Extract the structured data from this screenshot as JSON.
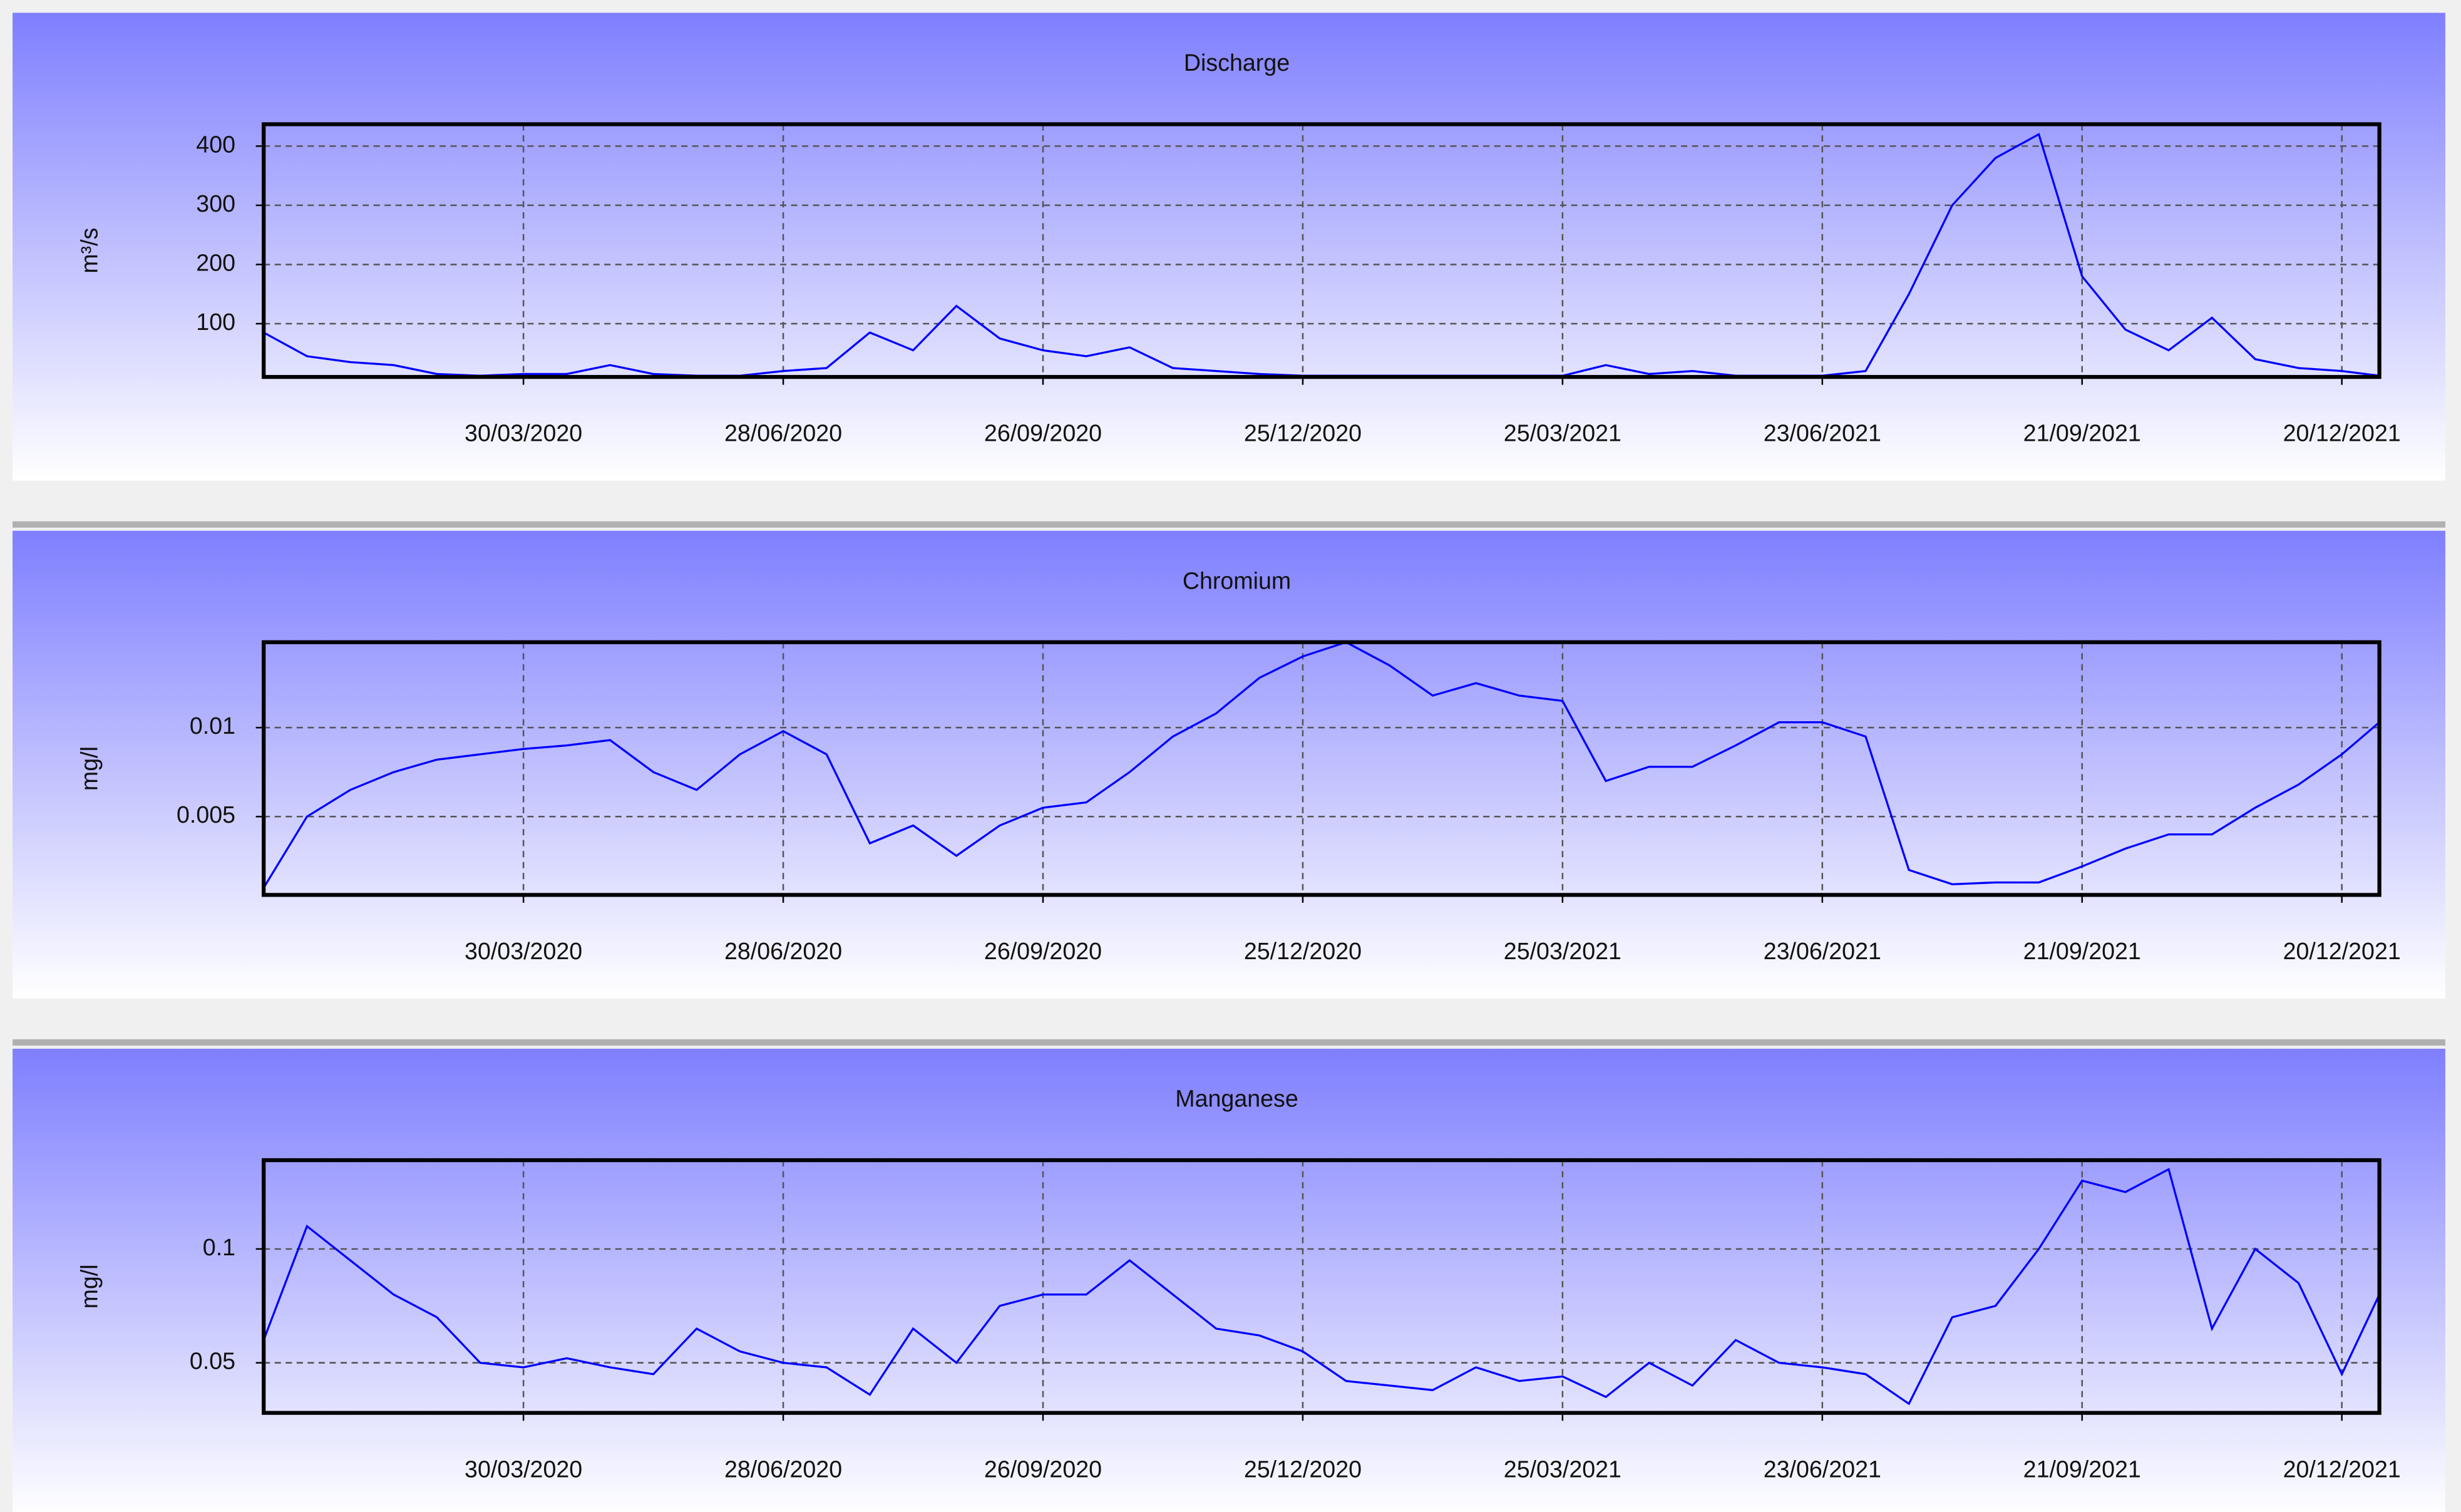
{
  "chart_data": [
    {
      "type": "line",
      "title": "Discharge",
      "ylabel": "m³/s",
      "color": "#0000ff",
      "grid": true,
      "xlim": [
        "31/12/2019",
        "02/01/2022"
      ],
      "ylim": [
        10,
        437
      ],
      "xticks": [
        "30/03/2020",
        "28/06/2020",
        "26/09/2020",
        "25/12/2020",
        "25/03/2021",
        "23/06/2021",
        "21/09/2021",
        "20/12/2021"
      ],
      "yticks": [
        100,
        200,
        300,
        400
      ],
      "x": [
        "31/12/2019",
        "15/01/2020",
        "30/01/2020",
        "14/02/2020",
        "29/02/2020",
        "15/03/2020",
        "30/03/2020",
        "14/04/2020",
        "29/04/2020",
        "14/05/2020",
        "29/05/2020",
        "13/06/2020",
        "28/06/2020",
        "13/07/2020",
        "28/07/2020",
        "12/08/2020",
        "27/08/2020",
        "11/09/2020",
        "26/09/2020",
        "11/10/2020",
        "26/10/2020",
        "10/11/2020",
        "25/11/2020",
        "10/12/2020",
        "25/12/2020",
        "09/01/2021",
        "24/01/2021",
        "08/02/2021",
        "23/02/2021",
        "10/03/2021",
        "25/03/2021",
        "09/04/2021",
        "24/04/2021",
        "09/05/2021",
        "24/05/2021",
        "08/06/2021",
        "23/06/2021",
        "08/07/2021",
        "23/07/2021",
        "07/08/2021",
        "22/08/2021",
        "06/09/2021",
        "21/09/2021",
        "06/10/2021",
        "21/10/2021",
        "05/11/2021",
        "20/11/2021",
        "05/12/2021",
        "20/12/2021",
        "02/01/2022"
      ],
      "values": [
        85,
        45,
        35,
        30,
        15,
        12,
        15,
        15,
        30,
        15,
        12,
        12,
        20,
        25,
        85,
        55,
        130,
        75,
        55,
        45,
        60,
        25,
        20,
        15,
        12,
        12,
        12,
        12,
        12,
        12,
        12,
        30,
        15,
        20,
        12,
        12,
        12,
        20,
        150,
        300,
        380,
        420,
        180,
        90,
        55,
        110,
        40,
        25,
        20,
        12
      ]
    },
    {
      "type": "line",
      "title": "Chromium",
      "ylabel": "mg/l",
      "color": "#0000ff",
      "grid": true,
      "xlim": [
        "31/12/2019",
        "02/01/2022"
      ],
      "ylim": [
        0.0006,
        0.0148
      ],
      "xticks": [
        "30/03/2020",
        "28/06/2020",
        "26/09/2020",
        "25/12/2020",
        "25/03/2021",
        "23/06/2021",
        "21/09/2021",
        "20/12/2021"
      ],
      "yticks": [
        0.005,
        0.01
      ],
      "x": [
        "31/12/2019",
        "15/01/2020",
        "30/01/2020",
        "14/02/2020",
        "29/02/2020",
        "15/03/2020",
        "30/03/2020",
        "14/04/2020",
        "29/04/2020",
        "14/05/2020",
        "29/05/2020",
        "13/06/2020",
        "28/06/2020",
        "13/07/2020",
        "28/07/2020",
        "12/08/2020",
        "27/08/2020",
        "11/09/2020",
        "26/09/2020",
        "11/10/2020",
        "26/10/2020",
        "10/11/2020",
        "25/11/2020",
        "10/12/2020",
        "25/12/2020",
        "09/01/2021",
        "24/01/2021",
        "08/02/2021",
        "23/02/2021",
        "10/03/2021",
        "25/03/2021",
        "09/04/2021",
        "24/04/2021",
        "09/05/2021",
        "24/05/2021",
        "08/06/2021",
        "23/06/2021",
        "08/07/2021",
        "23/07/2021",
        "07/08/2021",
        "22/08/2021",
        "06/09/2021",
        "21/09/2021",
        "06/10/2021",
        "21/10/2021",
        "05/11/2021",
        "20/11/2021",
        "05/12/2021",
        "20/12/2021",
        "02/01/2022"
      ],
      "values": [
        0.001,
        0.005,
        0.0065,
        0.0075,
        0.0082,
        0.0085,
        0.0088,
        0.009,
        0.0093,
        0.0075,
        0.0065,
        0.0085,
        0.0098,
        0.0085,
        0.0035,
        0.0045,
        0.0028,
        0.0045,
        0.0055,
        0.0058,
        0.0075,
        0.0095,
        0.0108,
        0.0128,
        0.014,
        0.0148,
        0.0135,
        0.0118,
        0.0125,
        0.0118,
        0.0115,
        0.007,
        0.0078,
        0.0078,
        0.009,
        0.0103,
        0.0103,
        0.0095,
        0.002,
        0.0012,
        0.0013,
        0.0013,
        0.0022,
        0.0032,
        0.004,
        0.004,
        0.0055,
        0.0068,
        0.0085,
        0.0103
      ]
    },
    {
      "type": "line",
      "title": "Manganese",
      "ylabel": "mg/l",
      "color": "#0000ff",
      "grid": true,
      "xlim": [
        "31/12/2019",
        "02/01/2022"
      ],
      "ylim": [
        0.028,
        0.139
      ],
      "xticks": [
        "30/03/2020",
        "28/06/2020",
        "26/09/2020",
        "25/12/2020",
        "25/03/2021",
        "23/06/2021",
        "21/09/2021",
        "20/12/2021"
      ],
      "yticks": [
        0.05,
        0.1
      ],
      "x": [
        "31/12/2019",
        "15/01/2020",
        "30/01/2020",
        "14/02/2020",
        "29/02/2020",
        "15/03/2020",
        "30/03/2020",
        "14/04/2020",
        "29/04/2020",
        "14/05/2020",
        "29/05/2020",
        "13/06/2020",
        "28/06/2020",
        "13/07/2020",
        "28/07/2020",
        "12/08/2020",
        "27/08/2020",
        "11/09/2020",
        "26/09/2020",
        "11/10/2020",
        "26/10/2020",
        "10/11/2020",
        "25/11/2020",
        "10/12/2020",
        "25/12/2020",
        "09/01/2021",
        "24/01/2021",
        "08/02/2021",
        "23/02/2021",
        "10/03/2021",
        "25/03/2021",
        "09/04/2021",
        "24/04/2021",
        "09/05/2021",
        "24/05/2021",
        "08/06/2021",
        "23/06/2021",
        "08/07/2021",
        "23/07/2021",
        "07/08/2021",
        "22/08/2021",
        "06/09/2021",
        "21/09/2021",
        "06/10/2021",
        "21/10/2021",
        "05/11/2021",
        "20/11/2021",
        "05/12/2021",
        "20/12/2021",
        "02/01/2022"
      ],
      "values": [
        0.06,
        0.11,
        0.095,
        0.08,
        0.07,
        0.05,
        0.048,
        0.052,
        0.048,
        0.045,
        0.065,
        0.055,
        0.05,
        0.048,
        0.036,
        0.065,
        0.05,
        0.075,
        0.08,
        0.08,
        0.095,
        0.08,
        0.065,
        0.062,
        0.055,
        0.042,
        0.04,
        0.038,
        0.048,
        0.042,
        0.044,
        0.035,
        0.05,
        0.04,
        0.06,
        0.05,
        0.048,
        0.045,
        0.032,
        0.07,
        0.075,
        0.1,
        0.13,
        0.125,
        0.135,
        0.065,
        0.1,
        0.085,
        0.045,
        0.08
      ]
    }
  ]
}
